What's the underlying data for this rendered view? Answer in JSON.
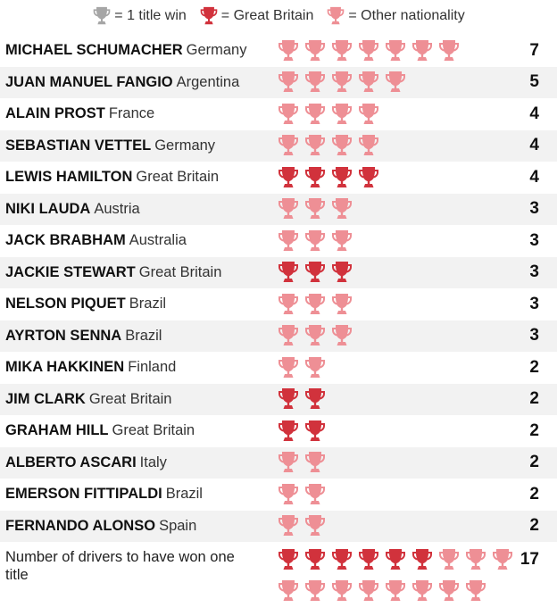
{
  "legend": {
    "title_win": "= 1 title win",
    "great_britain": "= Great Britain",
    "other": "= Other nationality"
  },
  "colors": {
    "legend_grey": "#a6a6a6",
    "great_britain": "#d1323c",
    "other": "#ee8f95",
    "row_stripe": "#f2f2f2"
  },
  "icon": "trophy-icon",
  "chart_data": {
    "type": "table",
    "unit": "title wins",
    "rows": [
      {
        "driver": "MICHAEL SCHUMACHER",
        "nationality": "Germany",
        "titles": 7,
        "gb": false
      },
      {
        "driver": "JUAN MANUEL FANGIO",
        "nationality": "Argentina",
        "titles": 5,
        "gb": false
      },
      {
        "driver": "ALAIN PROST",
        "nationality": "France",
        "titles": 4,
        "gb": false
      },
      {
        "driver": "SEBASTIAN VETTEL",
        "nationality": "Germany",
        "titles": 4,
        "gb": false
      },
      {
        "driver": "LEWIS HAMILTON",
        "nationality": "Great Britain",
        "titles": 4,
        "gb": true
      },
      {
        "driver": "NIKI LAUDA",
        "nationality": "Austria",
        "titles": 3,
        "gb": false
      },
      {
        "driver": "JACK BRABHAM",
        "nationality": "Australia",
        "titles": 3,
        "gb": false
      },
      {
        "driver": "JACKIE STEWART",
        "nationality": "Great Britain",
        "titles": 3,
        "gb": true
      },
      {
        "driver": "NELSON PIQUET",
        "nationality": "Brazil",
        "titles": 3,
        "gb": false
      },
      {
        "driver": "AYRTON SENNA",
        "nationality": "Brazil",
        "titles": 3,
        "gb": false
      },
      {
        "driver": "MIKA HAKKINEN",
        "nationality": "Finland",
        "titles": 2,
        "gb": false
      },
      {
        "driver": "JIM CLARK",
        "nationality": "Great Britain",
        "titles": 2,
        "gb": true
      },
      {
        "driver": "GRAHAM HILL",
        "nationality": "Great Britain",
        "titles": 2,
        "gb": true
      },
      {
        "driver": "ALBERTO ASCARI",
        "nationality": "Italy",
        "titles": 2,
        "gb": false
      },
      {
        "driver": "EMERSON FITTIPALDI",
        "nationality": "Brazil",
        "titles": 2,
        "gb": false
      },
      {
        "driver": "FERNANDO ALONSO",
        "nationality": "Spain",
        "titles": 2,
        "gb": false
      }
    ],
    "one_title": {
      "label": "Number of drivers to have won one title",
      "count": 17,
      "great_britain": 6,
      "other": 11
    }
  }
}
